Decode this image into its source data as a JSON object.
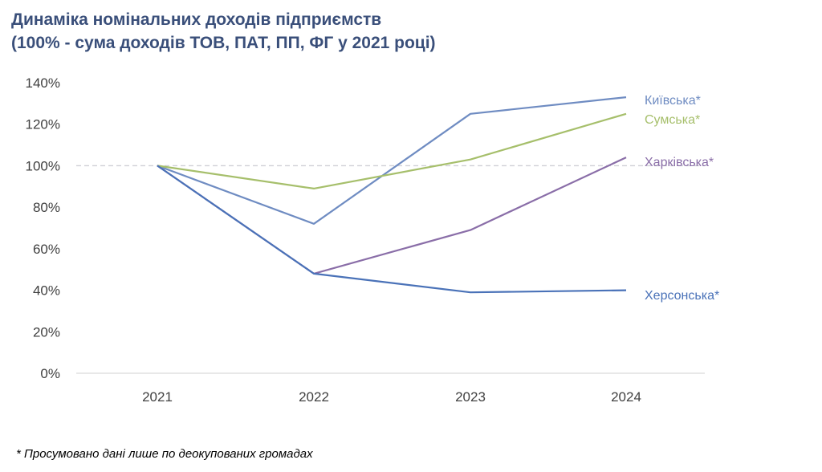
{
  "chart_data": {
    "type": "line",
    "title": "Динаміка номінальних доходів підприємств",
    "subtitle": "(100% - сума доходів ТОВ, ПАТ, ПП, ФГ у 2021 році)",
    "x": [
      "2021",
      "2022",
      "2023",
      "2024"
    ],
    "ylim": [
      0,
      140
    ],
    "yticks": [
      0,
      20,
      40,
      60,
      80,
      100,
      120,
      140
    ],
    "ytick_labels": [
      "0%",
      "20%",
      "40%",
      "60%",
      "80%",
      "100%",
      "120%",
      "140%"
    ],
    "reference_line": 100,
    "grid": false,
    "series": [
      {
        "name": "Київська*",
        "values": [
          100,
          72,
          125,
          133
        ],
        "color": "#6f8cc2"
      },
      {
        "name": "Сумська*",
        "values": [
          100,
          89,
          103,
          125
        ],
        "color": "#a6bf6b"
      },
      {
        "name": "Харківська*",
        "values": [
          100,
          48,
          69,
          104
        ],
        "color": "#8a6ea8"
      },
      {
        "name": "Херсонська*",
        "values": [
          100,
          48,
          39,
          40
        ],
        "color": "#4a72b8"
      }
    ],
    "footnote": "* Просумовано дані лише по деокупованих громадах"
  }
}
